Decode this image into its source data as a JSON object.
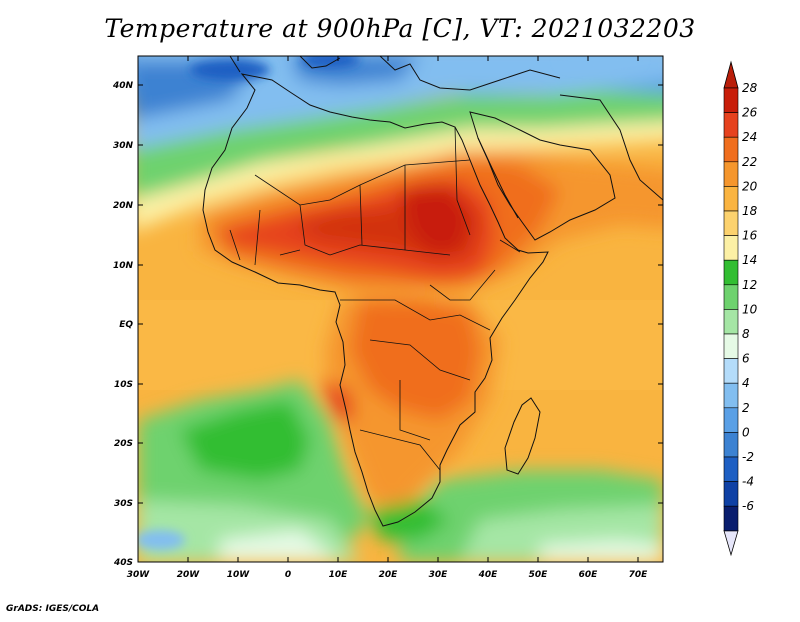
{
  "title": "Temperature at 900hPa [C], VT: 2021032203",
  "footer": "GrADS: IGES/COLA",
  "y_axis_labels": [
    "40N",
    "30N",
    "20N",
    "10N",
    "EQ",
    "10S",
    "20S",
    "30S",
    "40S"
  ],
  "x_axis_labels": [
    "30W",
    "20W",
    "10W",
    "0",
    "10E",
    "20E",
    "30E",
    "40E",
    "50E",
    "60E",
    "70E"
  ],
  "colorbar": {
    "labels": [
      "28",
      "26",
      "24",
      "22",
      "20",
      "18",
      "16",
      "14",
      "12",
      "10",
      "8",
      "6",
      "4",
      "2",
      "0",
      "-2",
      "-4",
      "-6"
    ],
    "colors": [
      "#c81e0a",
      "#e6421e",
      "#f06e1e",
      "#f5962d",
      "#fab441",
      "#fcd26e",
      "#fcf0a5",
      "#32be32",
      "#6ed26e",
      "#a5e6a5",
      "#e6fae6",
      "#b4dcfa",
      "#82bef0",
      "#5aa0e6",
      "#3c82d2",
      "#1e5fc3",
      "#0f41a5",
      "#0a1e6e"
    ],
    "top_arrow_color": "#b91e0a",
    "bottom_arrow_color": "#e6e6fa"
  }
}
